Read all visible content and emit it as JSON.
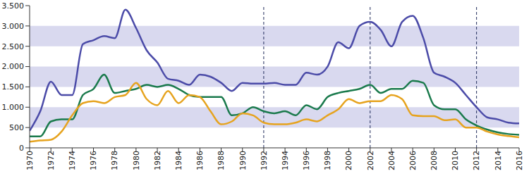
{
  "chart_data": {
    "type": "line",
    "x": [
      1970,
      1971,
      1972,
      1973,
      1974,
      1975,
      1976,
      1977,
      1978,
      1979,
      1980,
      1981,
      1982,
      1983,
      1984,
      1985,
      1986,
      1987,
      1988,
      1989,
      1990,
      1991,
      1992,
      1993,
      1994,
      1995,
      1996,
      1997,
      1998,
      1999,
      2000,
      2001,
      2002,
      2003,
      2004,
      2005,
      2006,
      2007,
      2008,
      2009,
      2010,
      2011,
      2012,
      2013,
      2014,
      2015,
      2016
    ],
    "series": [
      {
        "color": "#4b4ba8",
        "values": [
          420,
          900,
          1630,
          1300,
          1300,
          2550,
          2650,
          2750,
          2700,
          3400,
          2950,
          2400,
          2100,
          1700,
          1650,
          1550,
          1800,
          1750,
          1600,
          1400,
          1600,
          1580,
          1580,
          1600,
          1550,
          1550,
          1850,
          1800,
          2000,
          2600,
          2450,
          3000,
          3100,
          2900,
          2500,
          3100,
          3250,
          2700,
          1850,
          1750,
          1600,
          1300,
          1000,
          750,
          700,
          620,
          600
        ]
      },
      {
        "color": "#1a7a4c",
        "values": [
          280,
          280,
          650,
          700,
          700,
          1300,
          1450,
          1800,
          1350,
          1400,
          1450,
          1550,
          1500,
          1550,
          1450,
          1300,
          1250,
          1250,
          1250,
          800,
          850,
          1000,
          900,
          850,
          900,
          800,
          1050,
          950,
          1250,
          1350,
          1400,
          1450,
          1550,
          1350,
          1450,
          1450,
          1650,
          1600,
          1050,
          950,
          950,
          700,
          550,
          450,
          380,
          340,
          320
        ]
      },
      {
        "color": "#e6a31e",
        "values": [
          150,
          180,
          200,
          400,
          800,
          1100,
          1150,
          1100,
          1250,
          1300,
          1600,
          1200,
          1050,
          1400,
          1100,
          1300,
          1250,
          900,
          580,
          650,
          850,
          800,
          620,
          580,
          580,
          620,
          700,
          650,
          800,
          950,
          1200,
          1100,
          1150,
          1150,
          1300,
          1200,
          800,
          780,
          780,
          680,
          700,
          500,
          500,
          400,
          330,
          290,
          260
        ]
      }
    ],
    "xlim": [
      1970,
      2016
    ],
    "xticks": [
      1970,
      1972,
      1974,
      1976,
      1978,
      1980,
      1982,
      1984,
      1986,
      1988,
      1990,
      1992,
      1994,
      1996,
      1998,
      2000,
      2002,
      2004,
      2006,
      2008,
      2010,
      2012,
      2014,
      2016
    ],
    "ylim": [
      0,
      3500
    ],
    "yticks": [
      0,
      500,
      {
        "value": 1000,
        "label": "1.000"
      },
      {
        "value": 1500,
        "label": "1.500"
      },
      {
        "value": 2000,
        "label": "2.000"
      },
      {
        "value": 2500,
        "label": "2.500"
      },
      {
        "value": 3000,
        "label": "3.000"
      },
      {
        "value": 3500,
        "label": "3.500"
      }
    ],
    "vertical_lines": [
      1992,
      2002,
      2012
    ],
    "grid": true
  }
}
